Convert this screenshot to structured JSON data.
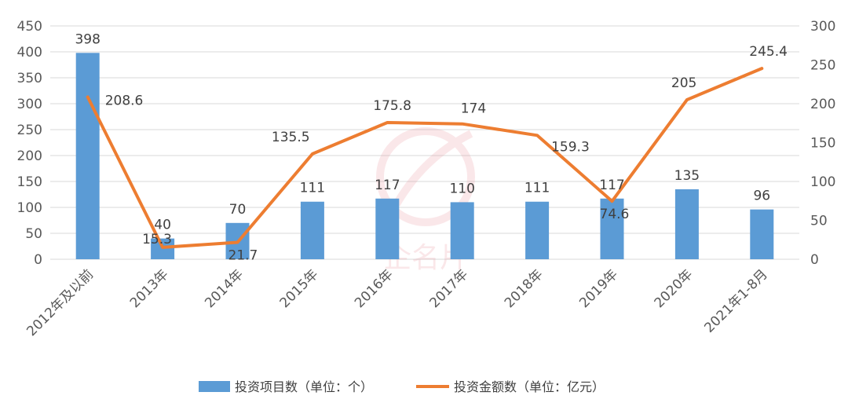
{
  "chart_data": {
    "type": "bar+line",
    "categories": [
      "2012年及以前",
      "2013年",
      "2014年",
      "2015年",
      "2016年",
      "2017年",
      "2018年",
      "2019年",
      "2020年",
      "2021年1-8月"
    ],
    "series": [
      {
        "name": "投资项目数（单位：个）",
        "type": "bar",
        "axis": "left",
        "color": "#5b9bd5",
        "values": [
          398,
          40,
          70,
          111,
          117,
          110,
          111,
          117,
          135,
          96
        ]
      },
      {
        "name": "投资金额数（单位：亿元）",
        "type": "line",
        "axis": "right",
        "color": "#ed7d31",
        "values": [
          208.6,
          15.3,
          21.7,
          135.5,
          175.8,
          174,
          159.3,
          74.6,
          205,
          245.4
        ]
      }
    ],
    "y_left": {
      "min": 0,
      "max": 450,
      "ticks": [
        0,
        50,
        100,
        150,
        200,
        250,
        300,
        350,
        400,
        450
      ]
    },
    "y_right": {
      "min": 0,
      "max": 300,
      "ticks": [
        0,
        50,
        100,
        150,
        200,
        250,
        300
      ]
    },
    "grid": true,
    "legend_position": "bottom"
  },
  "watermark_text": "企名片"
}
